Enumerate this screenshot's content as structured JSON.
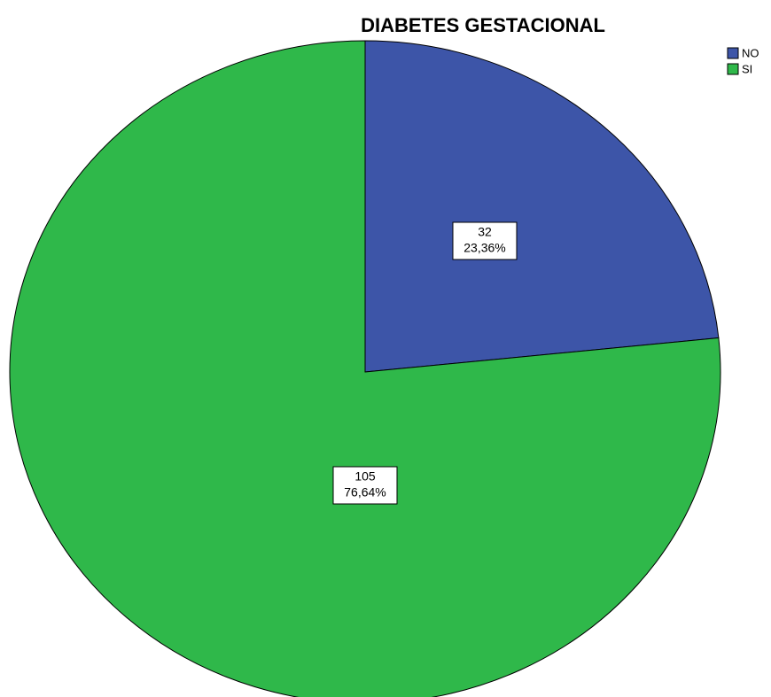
{
  "chart_data": {
    "type": "pie",
    "title": "DIABETES GESTACIONAL",
    "categories": [
      "NO",
      "SI"
    ],
    "values": [
      32,
      105
    ],
    "percent_labels": [
      "23,36%",
      "76,64%"
    ],
    "colors": [
      "#3d55a8",
      "#2fb84a"
    ],
    "legend": "top-right"
  }
}
